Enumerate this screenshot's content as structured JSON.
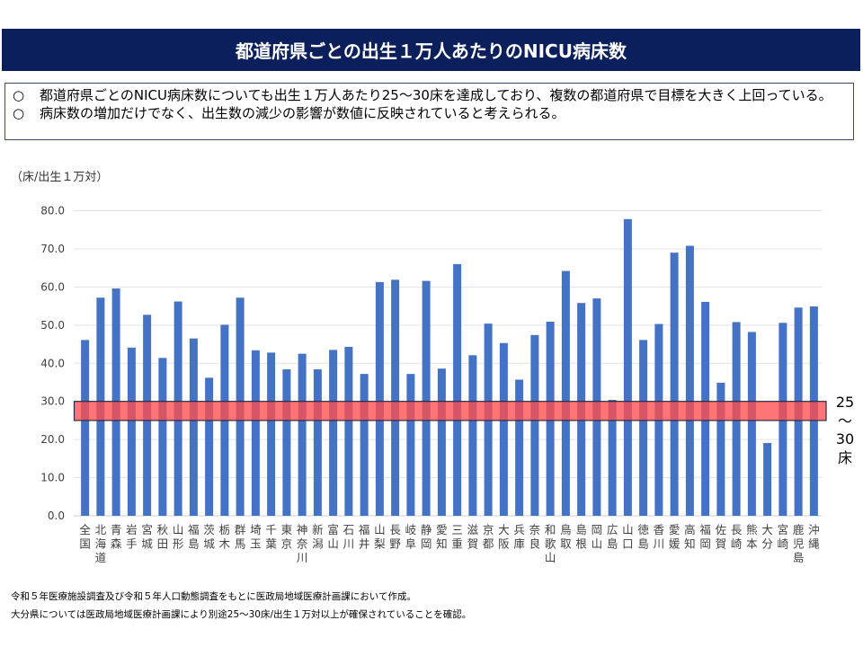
{
  "header": {
    "title": "都道府県ごとの出生１万人あたりのNICU病床数"
  },
  "summary": {
    "bullet_icon": "○",
    "items": [
      "都道府県ごとのNICU病床数についても出生１万人あたり25～30床を達成しており、複数の都道府県で目標を大きく上回っている。",
      "病床数の増加だけでなく、出生数の減少の影響が数値に反映されていると考えられる。"
    ]
  },
  "footnotes": [
    "令和５年医療施設調査及び令和５年人口動態調査をもとに医政局地域医療計画課において作成。",
    "大分県については医政局地域医療計画課により別途25～30床/出生１万対以上が確保されていることを確認。"
  ],
  "chart_data": {
    "type": "bar",
    "title": "",
    "ylabel": "（床/出生１万対）",
    "xlabel": "",
    "ylim": [
      0,
      80
    ],
    "yticks": [
      "0.0",
      "10.0",
      "20.0",
      "30.0",
      "40.0",
      "50.0",
      "60.0",
      "70.0",
      "80.0"
    ],
    "grid": true,
    "bar_color": "#4472c4",
    "categories": [
      "全国",
      "北海道",
      "青森",
      "岩手",
      "宮城",
      "秋田",
      "山形",
      "福島",
      "茨城",
      "栃木",
      "群馬",
      "埼玉",
      "千葉",
      "東京",
      "神奈川",
      "新潟",
      "富山",
      "石川",
      "福井",
      "山梨",
      "長野",
      "岐阜",
      "静岡",
      "愛知",
      "三重",
      "滋賀",
      "京都",
      "大阪",
      "兵庫",
      "奈良",
      "和歌山",
      "鳥取",
      "島根",
      "岡山",
      "広島",
      "山口",
      "徳島",
      "香川",
      "愛媛",
      "高知",
      "福岡",
      "佐賀",
      "長崎",
      "熊本",
      "大分",
      "宮崎",
      "鹿児島",
      "沖縄"
    ],
    "values": [
      46.1,
      57.2,
      59.6,
      44.1,
      52.7,
      41.4,
      56.2,
      46.5,
      36.2,
      50.1,
      57.2,
      43.4,
      42.8,
      38.4,
      42.5,
      38.4,
      43.5,
      44.3,
      37.2,
      61.3,
      61.9,
      37.2,
      61.6,
      38.6,
      66.0,
      42.1,
      50.4,
      45.3,
      35.7,
      47.4,
      50.9,
      64.2,
      55.8,
      57.0,
      30.4,
      77.8,
      46.1,
      50.3,
      69.0,
      70.8,
      56.1,
      34.9,
      50.8,
      48.2,
      19.1,
      50.6,
      54.6,
      54.9
    ],
    "target_band": {
      "from": 25,
      "to": 30,
      "color": "#ff4d4d",
      "label_lines": [
        "25",
        "～",
        "30",
        "床"
      ]
    }
  }
}
